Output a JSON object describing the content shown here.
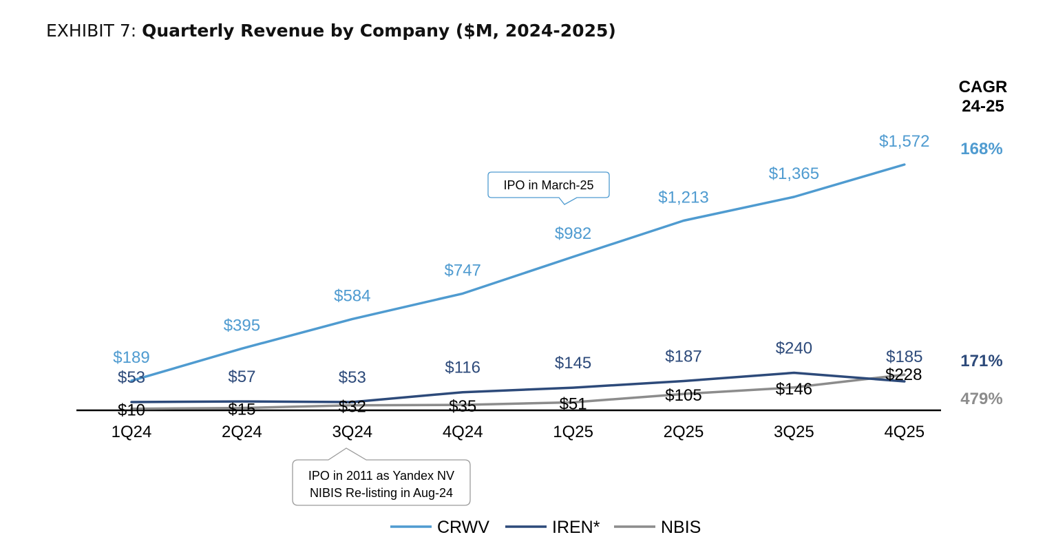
{
  "title": {
    "prefix": "EXHIBIT 7: ",
    "main": "Quarterly Revenue by Company ($M, 2024-2025)"
  },
  "chart_data": {
    "type": "line",
    "categories": [
      "1Q24",
      "2Q24",
      "3Q24",
      "4Q24",
      "1Q25",
      "2Q25",
      "3Q25",
      "4Q25"
    ],
    "series": [
      {
        "name": "CRWV",
        "color": "#4f9bd0",
        "values": [
          189,
          395,
          584,
          747,
          982,
          1213,
          1365,
          1572
        ],
        "labels": [
          "$189",
          "$395",
          "$584",
          "$747",
          "$982",
          "$1,213",
          "$1,365",
          "$1,572"
        ],
        "cagr": "168%"
      },
      {
        "name": "IREN*",
        "color": "#2d4a7a",
        "values": [
          53,
          57,
          53,
          116,
          145,
          187,
          240,
          185
        ],
        "labels": [
          "$53",
          "$57",
          "$53",
          "$116",
          "$145",
          "$187",
          "$240",
          "$185"
        ],
        "cagr": "171%"
      },
      {
        "name": "NBIS",
        "color": "#8c8c8c",
        "values": [
          10,
          15,
          32,
          35,
          51,
          105,
          146,
          228
        ],
        "labels": [
          "$10",
          "$15",
          "$32",
          "$35",
          "$51",
          "$105",
          "$146",
          "$228"
        ],
        "cagr": "479%",
        "label_color": "#000000"
      }
    ],
    "ylim": [
      0,
      1650
    ],
    "grid": false,
    "legend": "bottom-center",
    "cagr_header": [
      "CAGR",
      "24-25"
    ],
    "annotations": [
      {
        "text": [
          "IPO in March-25"
        ],
        "near": "1Q25",
        "series": "CRWV"
      },
      {
        "text": [
          "IPO in 2011 as Yandex NV",
          "NIBIS Re-listing in Aug-24"
        ],
        "near": "3Q24",
        "series": "NBIS"
      }
    ]
  }
}
